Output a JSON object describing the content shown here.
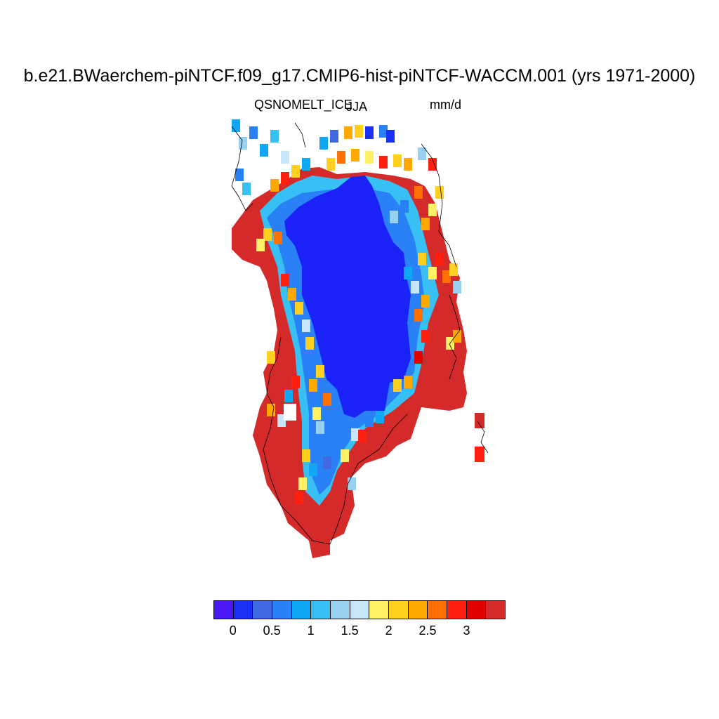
{
  "title": "b.e21.BWaerchem-piNTCF.f09_g17.CMIP6-hist-piNTCF-WACCM.001 (yrs 1971-2000)",
  "variable": "QSNOMELT_ICE",
  "season": "JJA",
  "units": "mm/d",
  "map": {
    "region": "Greenland",
    "coastlines": true,
    "palette": {
      "ice_interior": "#1a22f5",
      "coast_high": "#d42a2a"
    }
  },
  "colorbar": {
    "colors": [
      "#4a18f5",
      "#1a30f5",
      "#4068e0",
      "#2a80f5",
      "#10a8f5",
      "#38c0f5",
      "#98d0f0",
      "#c8e6fa",
      "#fff066",
      "#ffd020",
      "#ffa800",
      "#ff7000",
      "#ff2010",
      "#e00000",
      "#d42a2a"
    ],
    "ticks": [
      "0",
      "0.5",
      "1",
      "1.5",
      "2",
      "2.5",
      "3"
    ]
  }
}
